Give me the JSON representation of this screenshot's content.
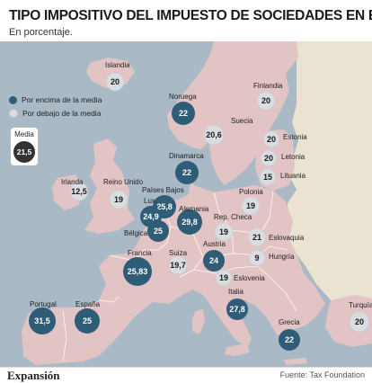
{
  "title": "TIPO IMPOSITIVO DEL IMPUESTO DE SOCIEDADES EN EUROPA",
  "subtitle": "En porcentaje.",
  "legend": {
    "above": "Por encima de la media",
    "below": "Por debajo de la media",
    "median_label": "Media",
    "median_value": "21,5"
  },
  "colors": {
    "above": "#2f5d78",
    "below": "#d9dde2",
    "median": "#333333",
    "land": "#e3c4c4",
    "other_land": "#ebe3d1",
    "sea": "#a9b9c6"
  },
  "footer": {
    "logo": "Expansión",
    "source": "Fuente: Tax Foundation"
  },
  "countries": [
    {
      "name": "Islandia",
      "value": "20",
      "above": false
    },
    {
      "name": "Noruega",
      "value": "22",
      "above": true
    },
    {
      "name": "Finlandia",
      "value": "20",
      "above": false
    },
    {
      "name": "Suecia",
      "value": "20,6",
      "above": false
    },
    {
      "name": "Estonia",
      "value": "20",
      "above": false
    },
    {
      "name": "Letonia",
      "value": "20",
      "above": false
    },
    {
      "name": "Lituania",
      "value": "15",
      "above": false
    },
    {
      "name": "Dinamarca",
      "value": "22",
      "above": true
    },
    {
      "name": "Irlanda",
      "value": "12,5",
      "above": false
    },
    {
      "name": "Reino Unido",
      "value": "19",
      "above": false
    },
    {
      "name": "Países Bajos",
      "value": "25,8",
      "above": true
    },
    {
      "name": "Lux.",
      "value": "24,9",
      "above": true
    },
    {
      "name": "Bélgica",
      "value": "25",
      "above": true
    },
    {
      "name": "Alemania",
      "value": "29,8",
      "above": true
    },
    {
      "name": "Polonia",
      "value": "19",
      "above": false
    },
    {
      "name": "Rep. Checa",
      "value": "19",
      "above": false
    },
    {
      "name": "Eslovaquia",
      "value": "21",
      "above": false
    },
    {
      "name": "Austria",
      "value": "24",
      "above": true
    },
    {
      "name": "Hungría",
      "value": "9",
      "above": false
    },
    {
      "name": "Eslovenia",
      "value": "19",
      "above": false
    },
    {
      "name": "Francia",
      "value": "25,83",
      "above": true
    },
    {
      "name": "Suiza",
      "value": "19,7",
      "above": false
    },
    {
      "name": "Italia",
      "value": "27,8",
      "above": true
    },
    {
      "name": "Portugal",
      "value": "31,5",
      "above": true
    },
    {
      "name": "España",
      "value": "25",
      "above": true
    },
    {
      "name": "Grecia",
      "value": "22",
      "above": true
    },
    {
      "name": "Turquía",
      "value": "20",
      "above": false
    }
  ]
}
